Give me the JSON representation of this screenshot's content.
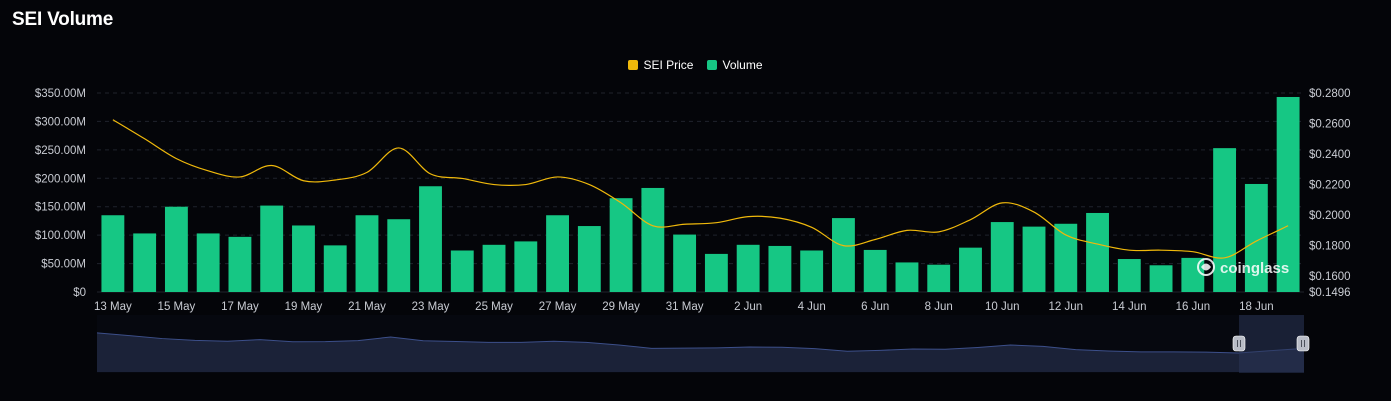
{
  "page": {
    "title": "SEI Volume"
  },
  "legend": {
    "items": [
      {
        "label": "SEI Price",
        "color": "#f0b90b"
      },
      {
        "label": "Volume",
        "color": "#16c784"
      }
    ]
  },
  "watermark": {
    "text": "coinglass"
  },
  "colors": {
    "background": "#040509",
    "bar": "#16c784",
    "line": "#f0b90b",
    "grid": "#1f232c",
    "zoom_area": "#1b2238",
    "zoom_line": "#3c4f8a"
  },
  "chart_data": {
    "type": "bar",
    "title": "SEI Volume",
    "categories": [
      "13 May",
      "14 May",
      "15 May",
      "16 May",
      "17 May",
      "18 May",
      "19 May",
      "20 May",
      "21 May",
      "22 May",
      "23 May",
      "24 May",
      "25 May",
      "26 May",
      "27 May",
      "28 May",
      "29 May",
      "30 May",
      "31 May",
      "1 Jun",
      "2 Jun",
      "3 Jun",
      "4 Jun",
      "5 Jun",
      "6 Jun",
      "7 Jun",
      "8 Jun",
      "9 Jun",
      "10 Jun",
      "11 Jun",
      "12 Jun",
      "13 Jun",
      "14 Jun",
      "15 Jun",
      "16 Jun",
      "17 Jun",
      "18 Jun",
      "19 Jun"
    ],
    "x_tick_labels": [
      "13 May",
      "15 May",
      "17 May",
      "19 May",
      "21 May",
      "23 May",
      "25 May",
      "27 May",
      "29 May",
      "31 May",
      "2 Jun",
      "4 Jun",
      "6 Jun",
      "8 Jun",
      "10 Jun",
      "12 Jun",
      "14 Jun",
      "16 Jun",
      "18 Jun"
    ],
    "series": [
      {
        "name": "Volume",
        "axis": "left",
        "type": "bar",
        "values": [
          135,
          103,
          150,
          103,
          97,
          152,
          117,
          82,
          135,
          128,
          186,
          73,
          83,
          89,
          135,
          116,
          165,
          183,
          101,
          67,
          83,
          81,
          73,
          130,
          74,
          52,
          48,
          78,
          123,
          115,
          120,
          139,
          58,
          47,
          60,
          253,
          190,
          343
        ],
        "unit": "$M"
      },
      {
        "name": "SEI Price",
        "axis": "right",
        "type": "line",
        "values": [
          0.2625,
          0.25,
          0.237,
          0.229,
          0.225,
          0.2325,
          0.2225,
          0.223,
          0.228,
          0.244,
          0.227,
          0.224,
          0.22,
          0.22,
          0.225,
          0.22,
          0.208,
          0.193,
          0.194,
          0.195,
          0.199,
          0.198,
          0.192,
          0.18,
          0.184,
          0.19,
          0.189,
          0.197,
          0.208,
          0.202,
          0.187,
          0.181,
          0.177,
          0.177,
          0.176,
          0.172,
          0.183,
          0.193
        ]
      }
    ],
    "y_left": {
      "ticks": [
        "$0",
        "$50.00M",
        "$100.00M",
        "$150.00M",
        "$200.00M",
        "$250.00M",
        "$300.00M",
        "$350.00M"
      ],
      "ylim": [
        0,
        350
      ]
    },
    "y_right": {
      "ticks": [
        "$0.1496",
        "$0.1600",
        "$0.1800",
        "$0.2000",
        "$0.2200",
        "$0.2400",
        "$0.2600",
        "$0.2800"
      ],
      "ylim": [
        0.1496,
        0.28
      ]
    },
    "grid": true,
    "legend_position": "top-center"
  }
}
